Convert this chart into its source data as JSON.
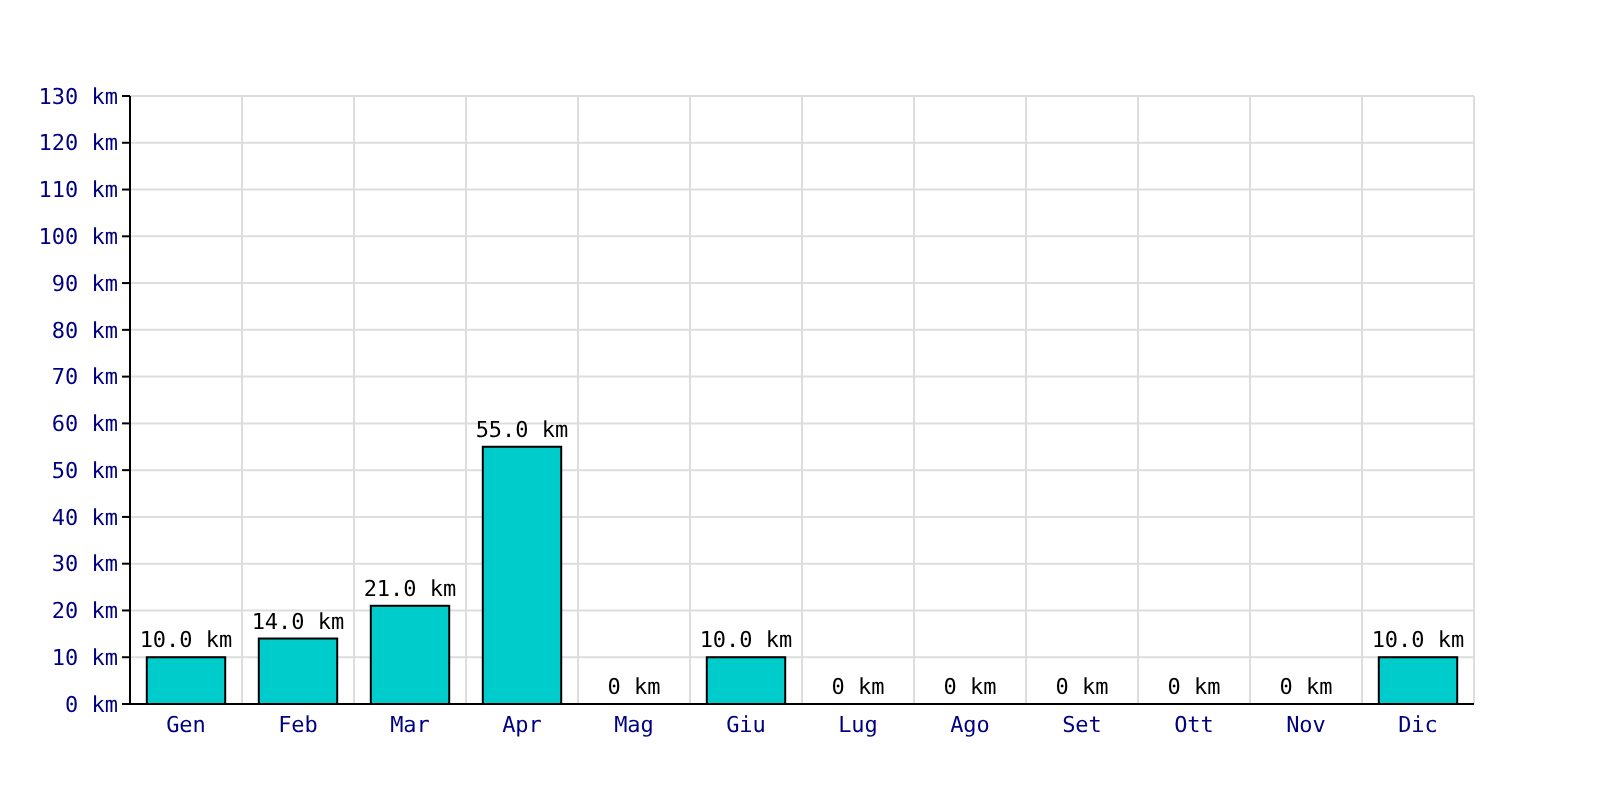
{
  "chart_data": {
    "type": "bar",
    "categories": [
      "Gen",
      "Feb",
      "Mar",
      "Apr",
      "Mag",
      "Giu",
      "Lug",
      "Ago",
      "Set",
      "Ott",
      "Nov",
      "Dic"
    ],
    "values": [
      10,
      14,
      21,
      55,
      0,
      10,
      0,
      0,
      0,
      0,
      0,
      10
    ],
    "value_labels": [
      "10.0 km",
      "14.0 km",
      "21.0 km",
      "55.0 km",
      "0 km",
      "10.0 km",
      "0 km",
      "0 km",
      "0 km",
      "0 km",
      "0 km",
      "10.0 km"
    ],
    "color": "#00cccc",
    "ylim": [
      0,
      130
    ],
    "yticks": [
      {
        "value": 0,
        "label": "0 km"
      },
      {
        "value": 10,
        "label": "10 km"
      },
      {
        "value": 20,
        "label": "20 km"
      },
      {
        "value": 30,
        "label": "30 km"
      },
      {
        "value": 40,
        "label": "40 km"
      },
      {
        "value": 50,
        "label": "50 km"
      },
      {
        "value": 60,
        "label": "60 km"
      },
      {
        "value": 70,
        "label": "70 km"
      },
      {
        "value": 80,
        "label": "80 km"
      },
      {
        "value": 90,
        "label": "90 km"
      },
      {
        "value": 100,
        "label": "100 km"
      },
      {
        "value": 110,
        "label": "110 km"
      },
      {
        "value": 120,
        "label": "120 km"
      },
      {
        "value": 130,
        "label": "130 km"
      }
    ],
    "grid": true
  }
}
